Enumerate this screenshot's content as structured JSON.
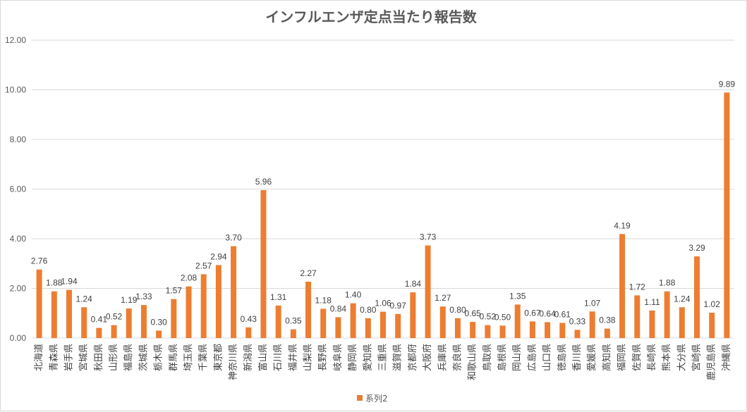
{
  "chart_data": {
    "type": "bar",
    "title": "インフルエンザ定点当たり報告数",
    "xlabel": "",
    "ylabel": "",
    "ylim": [
      0,
      12
    ],
    "yticks": [
      "0.00",
      "2.00",
      "4.00",
      "6.00",
      "8.00",
      "10.00",
      "12.00"
    ],
    "grid": true,
    "legend": "bottom",
    "bar_color": "#ED7D31",
    "categories": [
      "北海道",
      "青森県",
      "岩手県",
      "宮城県",
      "秋田県",
      "山形県",
      "福島県",
      "茨城県",
      "栃木県",
      "群馬県",
      "埼玉県",
      "千葉県",
      "東京都",
      "神奈川県",
      "新潟県",
      "富山県",
      "石川県",
      "福井県",
      "山梨県",
      "長野県",
      "岐阜県",
      "静岡県",
      "愛知県",
      "三重県",
      "滋賀県",
      "京都府",
      "大阪府",
      "兵庫県",
      "奈良県",
      "和歌山県",
      "鳥取県",
      "島根県",
      "岡山県",
      "広島県",
      "山口県",
      "徳島県",
      "香川県",
      "愛媛県",
      "高知県",
      "福岡県",
      "佐賀県",
      "長崎県",
      "熊本県",
      "大分県",
      "宮崎県",
      "鹿児島県",
      "沖縄県"
    ],
    "series": [
      {
        "name": "系列2",
        "values": [
          2.76,
          1.88,
          1.94,
          1.24,
          0.41,
          0.52,
          1.19,
          1.33,
          0.3,
          1.57,
          2.08,
          2.57,
          2.94,
          3.7,
          0.43,
          5.96,
          1.31,
          0.35,
          2.27,
          1.18,
          0.84,
          1.4,
          0.8,
          1.06,
          0.97,
          1.84,
          3.73,
          1.27,
          0.8,
          0.65,
          0.52,
          0.5,
          1.35,
          0.67,
          0.64,
          0.61,
          0.33,
          1.07,
          0.38,
          4.19,
          1.72,
          1.11,
          1.88,
          1.24,
          3.29,
          1.02,
          9.89
        ],
        "labels": [
          "2.76",
          "1.88",
          "1.94",
          "1.24",
          "0.41",
          "0.52",
          "1.19",
          "1.33",
          "0.30",
          "1.57",
          "2.08",
          "2.57",
          "2.94",
          "3.70",
          "0.43",
          "5.96",
          "1.31",
          "0.35",
          "2.27",
          "1.18",
          "0.84",
          "1.40",
          "0.80",
          "1.06",
          "0.97",
          "1.84",
          "3.73",
          "1.27",
          "0.80",
          "0.65",
          "0.52",
          "0.50",
          "1.35",
          "0.67",
          "0.64",
          "0.61",
          "0.33",
          "1.07",
          "0.38",
          "4.19",
          "1.72",
          "1.11",
          "1.88",
          "1.24",
          "3.29",
          "1.02",
          "9.89"
        ]
      }
    ]
  }
}
